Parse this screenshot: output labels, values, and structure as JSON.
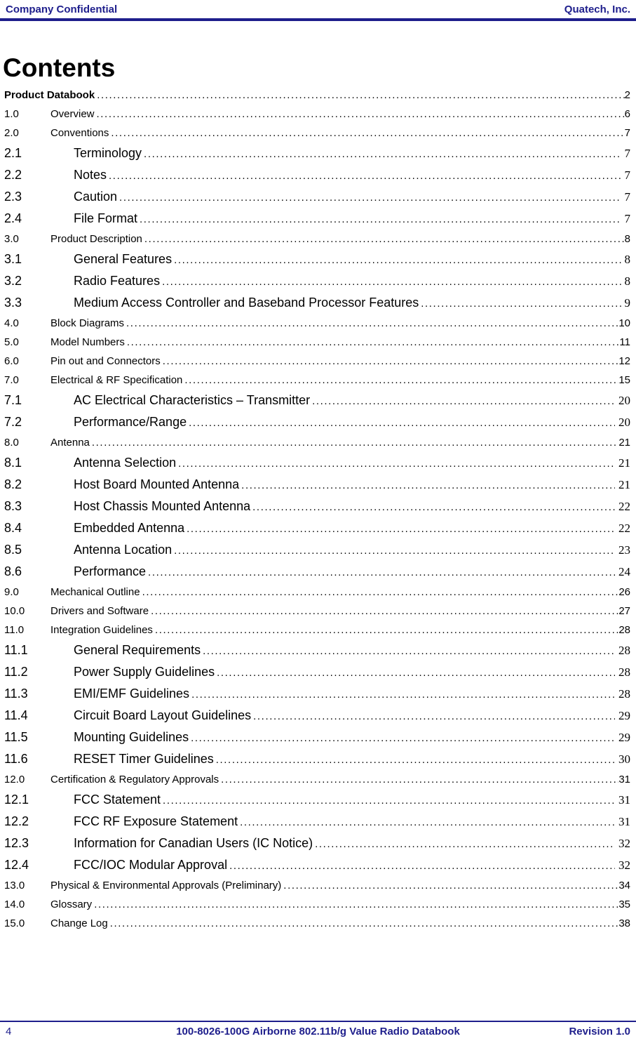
{
  "colors": {
    "accent": "#1e1e8c",
    "text": "#000000"
  },
  "header": {
    "left": "Company Confidential",
    "right": "Quatech, Inc."
  },
  "title": "Contents",
  "toc": {
    "entries": [
      {
        "level": 0,
        "num": "",
        "label": "Product Databook",
        "page": "2"
      },
      {
        "level": 1,
        "num": "1.0",
        "label": "Overview",
        "page": "6"
      },
      {
        "level": 1,
        "num": "2.0",
        "label": "Conventions",
        "page": "7"
      },
      {
        "level": 2,
        "num": "2.1",
        "label": "Terminology",
        "page": "7"
      },
      {
        "level": 2,
        "num": "2.2",
        "label": "Notes",
        "page": "7"
      },
      {
        "level": 2,
        "num": "2.3",
        "label": "Caution",
        "page": "7"
      },
      {
        "level": 2,
        "num": "2.4",
        "label": "File Format",
        "page": "7"
      },
      {
        "level": 1,
        "num": "3.0",
        "label": "Product Description",
        "page": "8"
      },
      {
        "level": 2,
        "num": "3.1",
        "label": "General Features",
        "page": "8"
      },
      {
        "level": 2,
        "num": "3.2",
        "label": "Radio Features",
        "page": "8"
      },
      {
        "level": 2,
        "num": "3.3",
        "label": "Medium Access Controller and Baseband Processor Features",
        "page": "9"
      },
      {
        "level": 1,
        "num": "4.0",
        "label": "Block Diagrams",
        "page": "10"
      },
      {
        "level": 1,
        "num": "5.0",
        "label": "Model Numbers",
        "page": "11"
      },
      {
        "level": 1,
        "num": "6.0",
        "label": "Pin out and Connectors",
        "page": "12"
      },
      {
        "level": 1,
        "num": "7.0",
        "label": "Electrical & RF Specification",
        "page": "15"
      },
      {
        "level": 2,
        "num": "7.1",
        "label": "AC Electrical Characteristics – Transmitter",
        "page": "20"
      },
      {
        "level": 2,
        "num": "7.2",
        "label": "Performance/Range",
        "page": "20"
      },
      {
        "level": 1,
        "num": "8.0",
        "label": "Antenna",
        "page": "21"
      },
      {
        "level": 2,
        "num": "8.1",
        "label": "Antenna Selection",
        "page": "21"
      },
      {
        "level": 2,
        "num": "8.2",
        "label": "Host Board Mounted Antenna",
        "page": "21"
      },
      {
        "level": 2,
        "num": "8.3",
        "label": "Host Chassis Mounted Antenna",
        "page": "22"
      },
      {
        "level": 2,
        "num": "8.4",
        "label": "Embedded Antenna",
        "page": "22"
      },
      {
        "level": 2,
        "num": "8.5",
        "label": "Antenna Location",
        "page": "23"
      },
      {
        "level": 2,
        "num": "8.6",
        "label": "Performance",
        "page": "24"
      },
      {
        "level": 1,
        "num": "9.0",
        "label": "Mechanical Outline",
        "page": "26"
      },
      {
        "level": 1,
        "num": "10.0",
        "label": "Drivers and Software",
        "page": "27"
      },
      {
        "level": 1,
        "num": "11.0",
        "label": "Integration Guidelines",
        "page": "28"
      },
      {
        "level": 2,
        "num": "11.1",
        "label": "General Requirements",
        "page": "28"
      },
      {
        "level": 2,
        "num": "11.2",
        "label": "Power Supply Guidelines",
        "page": "28"
      },
      {
        "level": 2,
        "num": "11.3",
        "label": "EMI/EMF Guidelines",
        "page": "28"
      },
      {
        "level": 2,
        "num": "11.4",
        "label": "Circuit Board Layout Guidelines",
        "page": "29"
      },
      {
        "level": 2,
        "num": "11.5",
        "label": "Mounting Guidelines",
        "page": "29"
      },
      {
        "level": 2,
        "num": "11.6",
        "label": "RESET Timer Guidelines",
        "page": "30"
      },
      {
        "level": 1,
        "num": "12.0",
        "label": "Certification & Regulatory Approvals",
        "page": "31"
      },
      {
        "level": 2,
        "num": "12.1",
        "label": "FCC Statement",
        "page": "31"
      },
      {
        "level": 2,
        "num": "12.2",
        "label": "FCC RF Exposure Statement",
        "page": "31"
      },
      {
        "level": 2,
        "num": "12.3",
        "label": "Information for Canadian Users (IC Notice)",
        "page": "32"
      },
      {
        "level": 2,
        "num": "12.4",
        "label": "FCC/IOC Modular Approval",
        "page": "32"
      },
      {
        "level": 1,
        "num": "13.0",
        "label": "Physical & Environmental Approvals (Preliminary)",
        "page": "34"
      },
      {
        "level": 1,
        "num": "14.0",
        "label": "Glossary",
        "page": "35"
      },
      {
        "level": 1,
        "num": "15.0",
        "label": "Change Log",
        "page": "38"
      }
    ]
  },
  "footer": {
    "page_number": "4",
    "center": "100-8026-100G Airborne 802.11b/g Value Radio Databook",
    "right": "Revision 1.0"
  }
}
